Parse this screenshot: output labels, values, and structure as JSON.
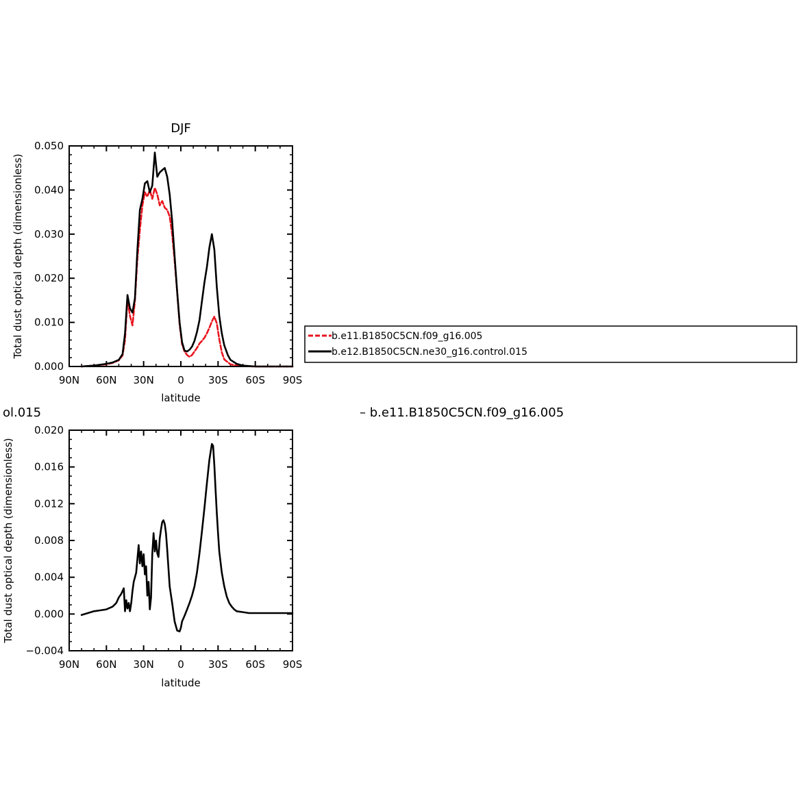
{
  "colors": {
    "model_a": "#e8141e",
    "model_b": "#000000"
  },
  "overflow_text": {
    "left_fragment": "ol.015",
    "right_fragment": "– b.e11.B1850C5CN.f09_g16.005"
  },
  "chart_data": [
    {
      "type": "line",
      "title": "DJF",
      "xlabel": "latitude",
      "ylabel": "Total dust optical depth (dimensionless)",
      "xlim": [
        -90,
        90
      ],
      "ylim": [
        0,
        0.05
      ],
      "x_ticks": [
        {
          "value": -90,
          "label": "90N"
        },
        {
          "value": -60,
          "label": "60N"
        },
        {
          "value": -30,
          "label": "30N"
        },
        {
          "value": 0,
          "label": "0"
        },
        {
          "value": 30,
          "label": "30S"
        },
        {
          "value": 60,
          "label": "60S"
        },
        {
          "value": 90,
          "label": "90S"
        }
      ],
      "y_ticks": [
        {
          "value": 0.0,
          "label": "0.000"
        },
        {
          "value": 0.01,
          "label": "0.010"
        },
        {
          "value": 0.02,
          "label": "0.020"
        },
        {
          "value": 0.03,
          "label": "0.030"
        },
        {
          "value": 0.04,
          "label": "0.040"
        },
        {
          "value": 0.05,
          "label": "0.050"
        }
      ],
      "legend": "right",
      "series": [
        {
          "name": "b.e11.B1850C5CN.f09_g16.005",
          "color": "#e8141e",
          "dash": true,
          "x": [
            -80,
            -70,
            -60,
            -55,
            -50,
            -47,
            -45,
            -43,
            -41,
            -39,
            -37,
            -35,
            -33,
            -31,
            -29,
            -27,
            -25,
            -23,
            -21,
            -19,
            -17,
            -15,
            -13,
            -11,
            -9,
            -7,
            -5,
            -3,
            -1,
            1,
            3,
            5,
            7,
            9,
            11,
            13,
            15,
            17,
            19,
            21,
            23,
            25,
            27,
            29,
            31,
            33,
            35,
            40,
            45,
            50,
            60,
            70,
            80,
            90
          ],
          "y": [
            0.0,
            0.0002,
            0.0005,
            0.0008,
            0.0014,
            0.0025,
            0.006,
            0.0152,
            0.0115,
            0.0093,
            0.015,
            0.0245,
            0.031,
            0.0365,
            0.0395,
            0.0385,
            0.04,
            0.038,
            0.0405,
            0.039,
            0.0365,
            0.0375,
            0.036,
            0.0355,
            0.034,
            0.03,
            0.024,
            0.017,
            0.0095,
            0.005,
            0.0034,
            0.0026,
            0.0022,
            0.0026,
            0.0034,
            0.0042,
            0.0052,
            0.0058,
            0.0065,
            0.0075,
            0.0088,
            0.0102,
            0.0113,
            0.0098,
            0.0062,
            0.0032,
            0.0016,
            0.0005,
            0.0002,
            0.0001,
            0.0,
            0.0,
            0.0,
            0.0
          ]
        },
        {
          "name": "b.e12.B1850C5CN.ne30_g16.control.015",
          "color": "#000000",
          "dash": false,
          "x": [
            -80,
            -70,
            -60,
            -55,
            -50,
            -47,
            -45,
            -43,
            -41,
            -39,
            -37,
            -35,
            -33,
            -31,
            -29,
            -27,
            -25,
            -23,
            -21,
            -19,
            -17,
            -15,
            -13,
            -11,
            -9,
            -7,
            -5,
            -3,
            -1,
            1,
            3,
            5,
            7,
            9,
            11,
            13,
            15,
            17,
            19,
            21,
            23,
            25,
            27,
            29,
            31,
            33,
            35,
            38,
            40,
            45,
            50,
            60,
            70,
            80,
            90
          ],
          "y": [
            0.0,
            0.0002,
            0.0006,
            0.0009,
            0.0015,
            0.0028,
            0.0075,
            0.0162,
            0.0132,
            0.0122,
            0.0155,
            0.0265,
            0.0355,
            0.038,
            0.0415,
            0.042,
            0.0395,
            0.041,
            0.0485,
            0.043,
            0.044,
            0.0445,
            0.045,
            0.043,
            0.039,
            0.033,
            0.025,
            0.017,
            0.01,
            0.0055,
            0.0036,
            0.0034,
            0.0038,
            0.0045,
            0.0058,
            0.0078,
            0.0105,
            0.0148,
            0.019,
            0.0225,
            0.027,
            0.03,
            0.0265,
            0.018,
            0.0115,
            0.0075,
            0.0048,
            0.0025,
            0.0015,
            0.0006,
            0.0002,
            0.0,
            0.0,
            0.0,
            0.0
          ]
        }
      ]
    },
    {
      "type": "line",
      "title": "",
      "xlabel": "latitude",
      "ylabel": "Total dust optical depth (dimensionless)",
      "xlim": [
        -90,
        90
      ],
      "ylim": [
        -0.004,
        0.02
      ],
      "x_ticks": [
        {
          "value": -90,
          "label": "90N"
        },
        {
          "value": -60,
          "label": "60N"
        },
        {
          "value": -30,
          "label": "30N"
        },
        {
          "value": 0,
          "label": "0"
        },
        {
          "value": 30,
          "label": "30S"
        },
        {
          "value": 60,
          "label": "60S"
        },
        {
          "value": 90,
          "label": "90S"
        }
      ],
      "y_ticks": [
        {
          "value": -0.004,
          "label": "−0.004"
        },
        {
          "value": 0.0,
          "label": "0.000"
        },
        {
          "value": 0.004,
          "label": "0.004"
        },
        {
          "value": 0.008,
          "label": "0.008"
        },
        {
          "value": 0.012,
          "label": "0.012"
        },
        {
          "value": 0.016,
          "label": "0.016"
        },
        {
          "value": 0.02,
          "label": "0.020"
        }
      ],
      "series": [
        {
          "color": "#000000",
          "dash": false,
          "x": [
            -80,
            -75,
            -70,
            -65,
            -60,
            -55,
            -52,
            -50,
            -48,
            -46,
            -45,
            -44,
            -43,
            -42,
            -41,
            -40,
            -39,
            -38,
            -36,
            -34,
            -33,
            -32,
            -31,
            -30,
            -29,
            -28,
            -27,
            -26,
            -25,
            -24,
            -23,
            -22,
            -21,
            -20,
            -19,
            -18,
            -17,
            -16,
            -15,
            -14,
            -13,
            -12,
            -11,
            -10,
            -9,
            -7,
            -5,
            -3,
            -1,
            0,
            1,
            3,
            5,
            7,
            9,
            11,
            13,
            15,
            17,
            19,
            21,
            23,
            25,
            26,
            27,
            28,
            29,
            30,
            31,
            33,
            35,
            37,
            39,
            41,
            43,
            45,
            50,
            55,
            60,
            70,
            80,
            90
          ],
          "y": [
            -0.0001,
            0.0001,
            0.0003,
            0.0004,
            0.0005,
            0.0008,
            0.0012,
            0.0018,
            0.0022,
            0.0028,
            0.0003,
            0.0015,
            0.0006,
            0.0012,
            0.0003,
            0.0012,
            0.0025,
            0.0035,
            0.0045,
            0.0075,
            0.0055,
            0.0068,
            0.0052,
            0.0065,
            0.0043,
            0.0052,
            0.002,
            0.0035,
            0.0005,
            0.0018,
            0.0065,
            0.0088,
            0.0068,
            0.008,
            0.0066,
            0.0062,
            0.0082,
            0.0092,
            0.01,
            0.0102,
            0.0098,
            0.0088,
            0.007,
            0.005,
            0.003,
            0.0012,
            -0.0008,
            -0.0018,
            -0.0019,
            -0.0015,
            -0.0008,
            -0.0002,
            0.0005,
            0.0012,
            0.002,
            0.003,
            0.0045,
            0.0066,
            0.009,
            0.0115,
            0.0142,
            0.0168,
            0.0185,
            0.0183,
            0.0162,
            0.0135,
            0.011,
            0.0088,
            0.0068,
            0.0045,
            0.003,
            0.0019,
            0.0012,
            0.0008,
            0.0005,
            0.0003,
            0.0002,
            0.0001,
            0.0001,
            0.0001,
            0.0001,
            0.0001
          ]
        }
      ]
    }
  ]
}
